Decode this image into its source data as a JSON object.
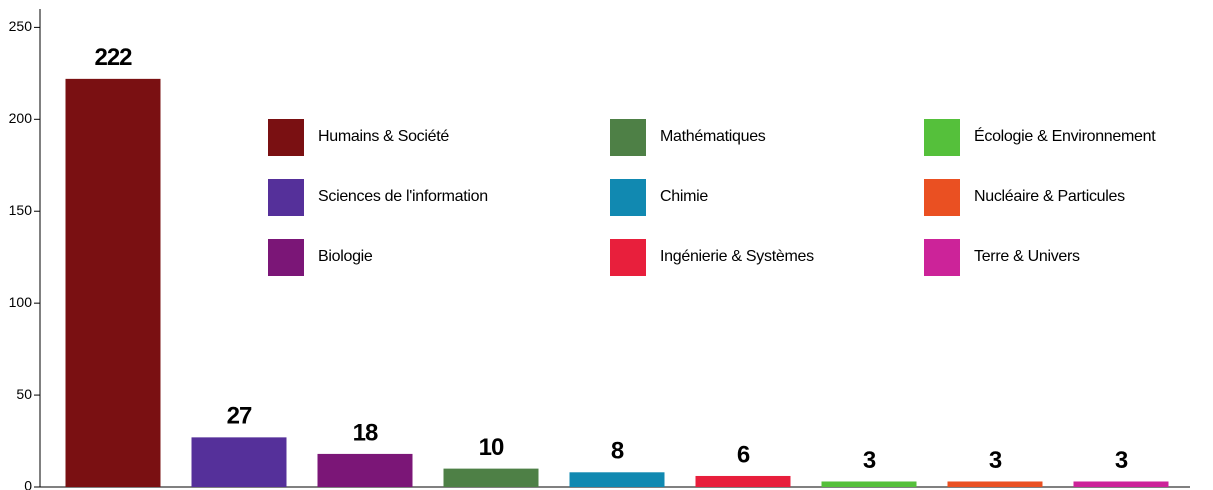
{
  "chart_data": {
    "type": "bar",
    "categories": [
      "Humains & Société",
      "Sciences de l'information",
      "Biologie",
      "Mathématiques",
      "Chimie",
      "Ingénierie & Systèmes",
      "Écologie & Environnement",
      "Nucléaire & Particules",
      "Terre & Univers"
    ],
    "values": [
      222,
      27,
      18,
      10,
      8,
      6,
      3,
      3,
      3
    ],
    "colors": [
      "#7a1012",
      "#55309a",
      "#7b1677",
      "#4e8046",
      "#1189b1",
      "#e81f3c",
      "#55c03b",
      "#ea5022",
      "#cc2399"
    ],
    "ylim": [
      0,
      260
    ],
    "yticks": [
      0,
      50,
      100,
      150,
      200,
      250
    ],
    "legend": "top-right"
  }
}
